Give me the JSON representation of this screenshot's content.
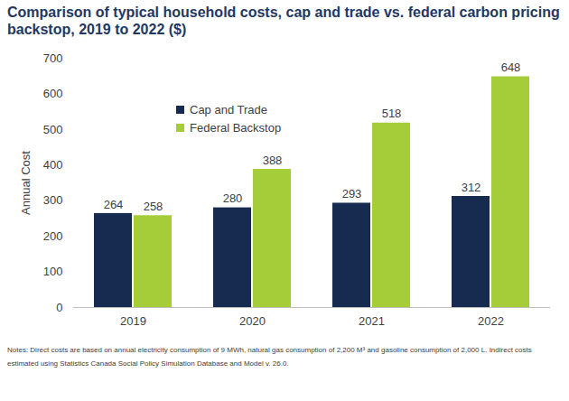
{
  "chart_data": {
    "type": "bar",
    "title": "Comparison of typical household costs, cap and trade vs. federal carbon pricing backstop, 2019 to 2022 ($)",
    "y_label": "Annual Cost",
    "notes": "Notes: Direct costs are based on annual electricity consumption of 9 MWh, natural gas consumption of 2,200 M³ and gasoline consumption of 2,000 L. Indirect costs estimated using Statistics Canada Social Policy Simulation Database and Model v. 26.0.",
    "categories": [
      "2019",
      "2020",
      "2021",
      "2022"
    ],
    "series": [
      {
        "name": "Cap and Trade",
        "color": "#172a4f",
        "values": [
          264,
          280,
          293,
          312
        ]
      },
      {
        "name": "Federal Backstop",
        "color": "#a5cd39",
        "values": [
          258,
          388,
          518,
          648
        ]
      }
    ],
    "ylim": [
      0,
      700
    ],
    "yticks": [
      0,
      100,
      200,
      300,
      400,
      500,
      600,
      700
    ],
    "grid": false,
    "legend": "upper left",
    "data_labels": true
  }
}
